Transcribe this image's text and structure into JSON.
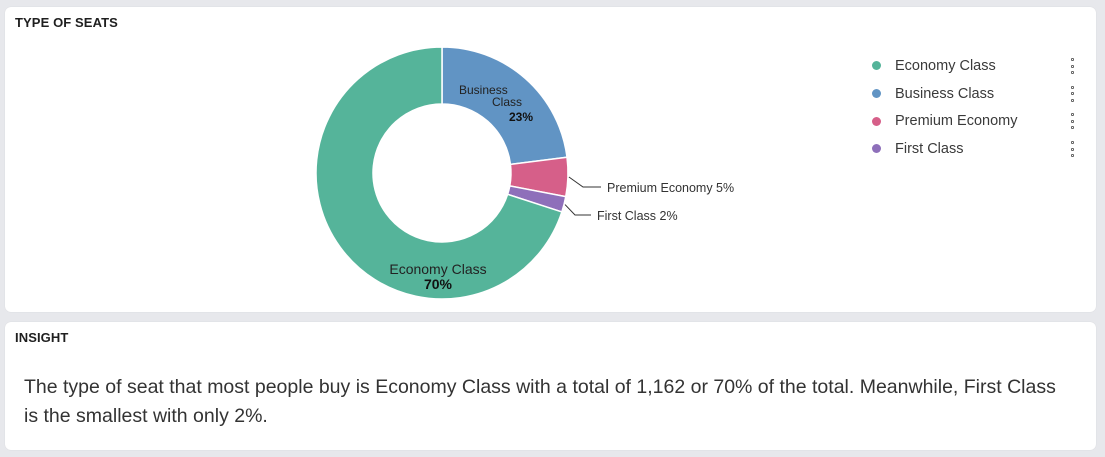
{
  "chart_panel": {
    "title": "TYPE OF SEATS"
  },
  "insight_panel": {
    "title": "INSIGHT",
    "text": "The type of seat that most people buy is Economy Class with a total of 1,162 or 70% of the total. Meanwhile, First Class is the smallest with only 2%."
  },
  "legend": [
    {
      "label": "Economy Class",
      "color": "#55b49a",
      "menu_icon": "more-vertical-icon"
    },
    {
      "label": "Business Class",
      "color": "#6194c4",
      "menu_icon": "more-vertical-icon"
    },
    {
      "label": "Premium Economy",
      "color": "#d65f89",
      "menu_icon": "more-vertical-icon"
    },
    {
      "label": "First Class",
      "color": "#8e6fba",
      "menu_icon": "more-vertical-icon"
    }
  ],
  "chart_data": {
    "type": "pie",
    "title": "TYPE OF SEATS",
    "donut": true,
    "legend_position": "right",
    "categories": [
      "Business Class",
      "Premium Economy",
      "First Class",
      "Economy Class"
    ],
    "values": [
      23,
      5,
      2,
      70
    ],
    "labels": [
      "23%",
      "5%",
      "2%",
      "70%"
    ],
    "colors": [
      "#6194c4",
      "#d65f89",
      "#8e6fba",
      "#55b49a"
    ]
  }
}
